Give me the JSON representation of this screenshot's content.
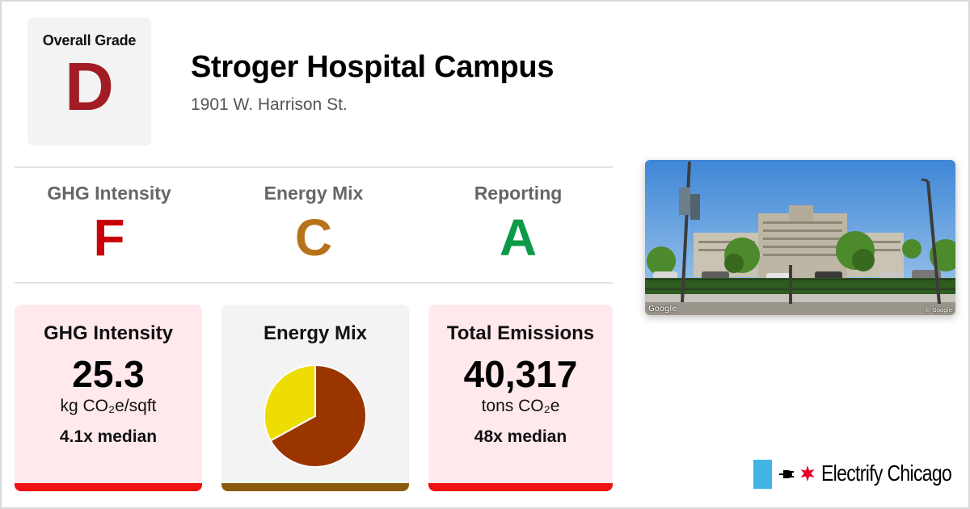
{
  "overall": {
    "label": "Overall Grade",
    "grade": "D",
    "color": "#a11d23"
  },
  "building": {
    "name": "Stroger Hospital Campus",
    "address": "1901 W. Harrison St."
  },
  "grades": [
    {
      "label": "GHG Intensity",
      "grade": "F",
      "color": "#c8000a"
    },
    {
      "label": "Energy Mix",
      "grade": "C",
      "color": "#b8731a"
    },
    {
      "label": "Reporting",
      "grade": "A",
      "color": "#0a9a48"
    }
  ],
  "cards": {
    "ghg": {
      "title": "GHG Intensity",
      "value": "25.3",
      "unit": "kg CO₂e/sqft",
      "median": "4.1x median",
      "bar_color": "#ee1111",
      "bg": "#ffe9ec"
    },
    "mix": {
      "title": "Energy Mix",
      "bar_color": "#8c5a0f",
      "bg": "#f3f3f3",
      "pie": {
        "slices": [
          {
            "value": 0.67,
            "color": "#9b3500"
          },
          {
            "value": 0.33,
            "color": "#eedd00"
          }
        ]
      }
    },
    "emissions": {
      "title": "Total Emissions",
      "value": "40,317",
      "unit": "tons CO₂e",
      "median": "48x median",
      "bar_color": "#ee1111",
      "bg": "#ffe9ec"
    }
  },
  "photo": {
    "watermark_left": "Google",
    "watermark_right": "© Google"
  },
  "brand": {
    "name": "Electrify Chicago",
    "flag_color": "#41b6e6",
    "star_color": "#e4002b"
  }
}
